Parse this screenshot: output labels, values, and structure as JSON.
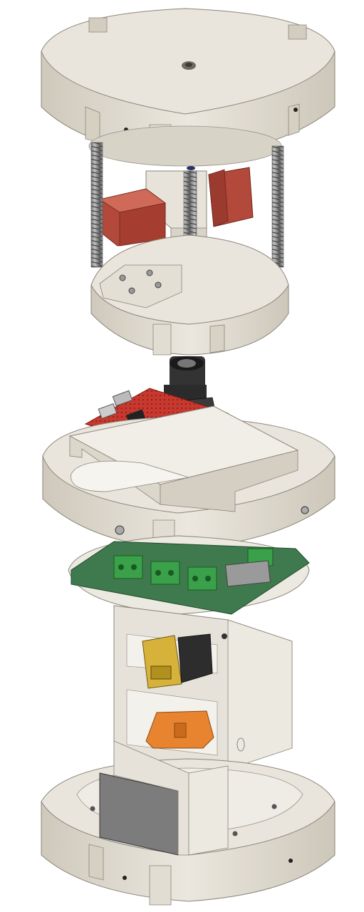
{
  "scene": {
    "subject": "exploded-cad-assembly",
    "colors": {
      "background": "#ffffff",
      "plastic": "#e8e4da",
      "plastic_side": "#d6d1c5",
      "plastic_shadow": "#bdb7aa",
      "spring": "#8e8e8e",
      "motor_red": "#b8503e",
      "pcb_green": "#3f7a4e",
      "pcb_red": "#c7382f",
      "pcb_blue": "#2c3f9a",
      "terminal_green": "#3aa04a",
      "camera_black": "#2b2b2b",
      "battery_yellow": "#d6b23a",
      "orange_part": "#e8842f",
      "grey_block": "#808080"
    }
  }
}
